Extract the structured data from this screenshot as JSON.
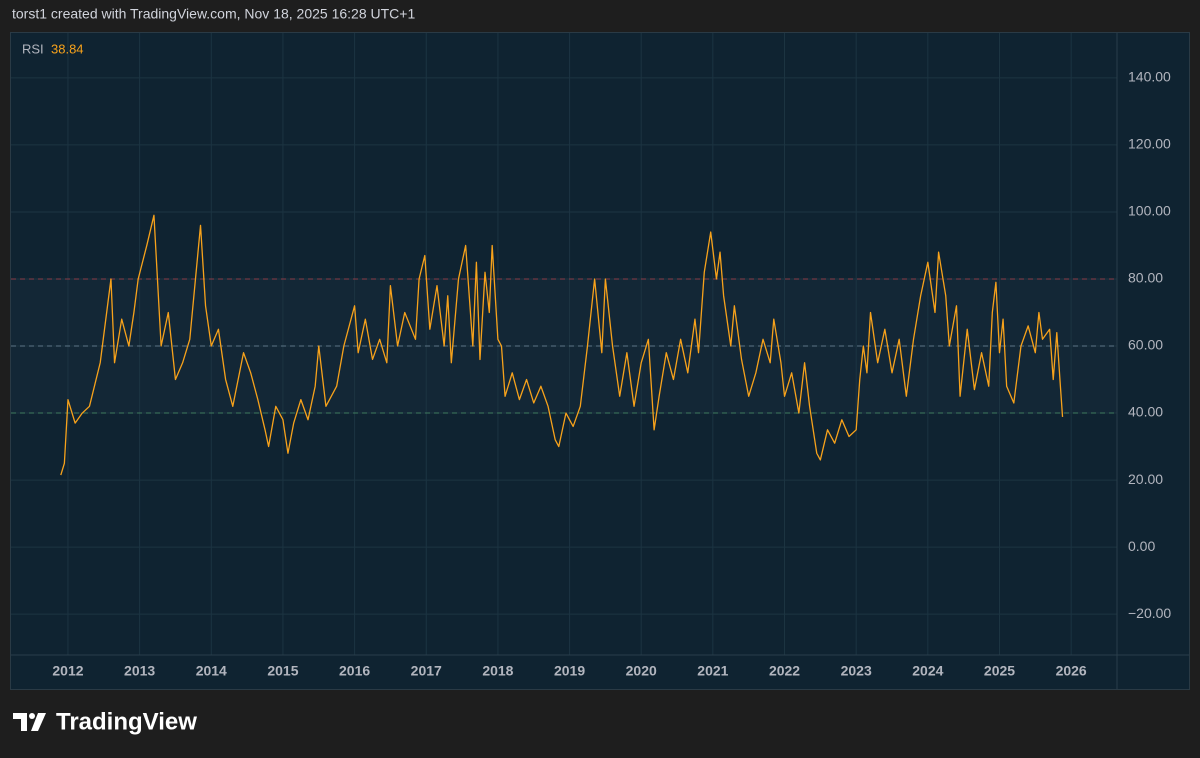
{
  "header": "torst1 created with TradingView.com, Nov 18, 2025 16:28 UTC+1",
  "brand": "TradingView",
  "chart_data": {
    "type": "line",
    "x": [
      2011.9,
      2011.95,
      2012.0,
      2012.1,
      2012.2,
      2012.3,
      2012.45,
      2012.6,
      2012.65,
      2012.75,
      2012.85,
      2012.92,
      2012.98,
      2013.1,
      2013.2,
      2013.3,
      2013.4,
      2013.5,
      2013.6,
      2013.7,
      2013.85,
      2013.92,
      2014.0,
      2014.1,
      2014.2,
      2014.3,
      2014.45,
      2014.55,
      2014.65,
      2014.75,
      2014.8,
      2014.9,
      2015.0,
      2015.07,
      2015.15,
      2015.25,
      2015.35,
      2015.45,
      2015.5,
      2015.6,
      2015.75,
      2015.85,
      2016.0,
      2016.05,
      2016.15,
      2016.25,
      2016.35,
      2016.45,
      2016.5,
      2016.6,
      2016.7,
      2016.85,
      2016.9,
      2016.98,
      2017.05,
      2017.15,
      2017.25,
      2017.3,
      2017.35,
      2017.45,
      2017.55,
      2017.65,
      2017.7,
      2017.75,
      2017.82,
      2017.88,
      2017.92,
      2018.0,
      2018.05,
      2018.1,
      2018.2,
      2018.3,
      2018.4,
      2018.5,
      2018.6,
      2018.7,
      2018.8,
      2018.85,
      2018.95,
      2019.05,
      2019.15,
      2019.25,
      2019.35,
      2019.45,
      2019.5,
      2019.6,
      2019.7,
      2019.8,
      2019.9,
      2020.0,
      2020.1,
      2020.18,
      2020.25,
      2020.35,
      2020.45,
      2020.55,
      2020.65,
      2020.75,
      2020.8,
      2020.88,
      2020.97,
      2021.05,
      2021.1,
      2021.15,
      2021.25,
      2021.3,
      2021.4,
      2021.5,
      2021.6,
      2021.7,
      2021.8,
      2021.85,
      2021.95,
      2022.0,
      2022.1,
      2022.2,
      2022.28,
      2022.35,
      2022.45,
      2022.5,
      2022.6,
      2022.7,
      2022.8,
      2022.9,
      2023.0,
      2023.05,
      2023.1,
      2023.15,
      2023.2,
      2023.3,
      2023.4,
      2023.5,
      2023.6,
      2023.7,
      2023.8,
      2023.9,
      2024.0,
      2024.1,
      2024.15,
      2024.25,
      2024.3,
      2024.4,
      2024.45,
      2024.55,
      2024.65,
      2024.75,
      2024.85,
      2024.9,
      2024.95,
      2025.0,
      2025.05,
      2025.1,
      2025.2,
      2025.3,
      2025.4,
      2025.5,
      2025.55,
      2025.6,
      2025.7,
      2025.75,
      2025.8,
      2025.85,
      2025.88
    ],
    "series": [
      {
        "name": "RSI",
        "color": "#f7a21b",
        "values": [
          21.5,
          25,
          44,
          37,
          40,
          42,
          55,
          80,
          55,
          68,
          60,
          70,
          80,
          90,
          99,
          60,
          70,
          50,
          55,
          62,
          96,
          72,
          60,
          65,
          50,
          42,
          58,
          52,
          44,
          35,
          30,
          42,
          38,
          28,
          37,
          44,
          38,
          48,
          60,
          42,
          48,
          60,
          72,
          58,
          68,
          56,
          62,
          55,
          78,
          60,
          70,
          62,
          80,
          87,
          65,
          78,
          60,
          75,
          55,
          80,
          90,
          60,
          85,
          56,
          82,
          70,
          90,
          62,
          60,
          45,
          52,
          44,
          50,
          43,
          48,
          42,
          32,
          30,
          40,
          36,
          42,
          60,
          80,
          58,
          80,
          60,
          45,
          58,
          42,
          55,
          62,
          35,
          45,
          58,
          50,
          62,
          52,
          68,
          58,
          82,
          94,
          80,
          88,
          75,
          60,
          72,
          56,
          45,
          52,
          62,
          55,
          68,
          55,
          45,
          52,
          40,
          55,
          42,
          28,
          26,
          35,
          31,
          38,
          33,
          35,
          50,
          60,
          52,
          70,
          55,
          65,
          52,
          62,
          45,
          62,
          75,
          85,
          70,
          88,
          75,
          60,
          72,
          45,
          65,
          47,
          58,
          48,
          70,
          79,
          58,
          68,
          48,
          43,
          60,
          66,
          58,
          70,
          62,
          65,
          50,
          64,
          48,
          38.84
        ]
      }
    ],
    "xlim": [
      2011.205,
      2026.64
    ],
    "xticks": [
      2012,
      2013,
      2014,
      2015,
      2016,
      2017,
      2018,
      2019,
      2020,
      2021,
      2022,
      2023,
      2024,
      2025,
      2026
    ],
    "ylim": [
      -32.2,
      153.4
    ],
    "yticks": [
      {
        "value": -20,
        "label": "−20.00"
      },
      {
        "value": 0,
        "label": "0.00"
      },
      {
        "value": 20,
        "label": "20.00"
      },
      {
        "value": 40,
        "label": "40.00"
      },
      {
        "value": 60,
        "label": "60.00"
      },
      {
        "value": 80,
        "label": "80.00"
      },
      {
        "value": 100,
        "label": "100.00"
      },
      {
        "value": 120,
        "label": "120.00"
      },
      {
        "value": 140,
        "label": "140.00"
      }
    ],
    "levels": [
      {
        "value": 80,
        "color": "#8a3d48"
      },
      {
        "value": 60,
        "color": "#5d7686"
      },
      {
        "value": 40,
        "color": "#3f7b5e"
      }
    ],
    "grid": true
  }
}
